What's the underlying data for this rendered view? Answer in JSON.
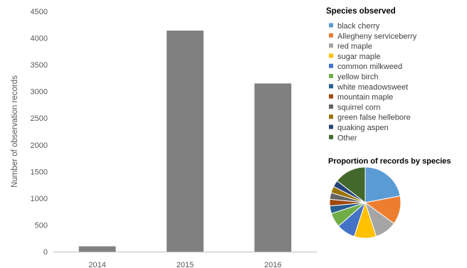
{
  "chart_data": [
    {
      "type": "bar",
      "categories": [
        "2014",
        "2015",
        "2016"
      ],
      "values": [
        100,
        4140,
        3150
      ],
      "ylabel": "Number of observation records",
      "xlabel": "",
      "ylim": [
        0,
        4500
      ],
      "yticks": [
        0,
        500,
        1000,
        1500,
        2000,
        2500,
        3000,
        3500,
        4000,
        4500
      ],
      "bar_color": "#808080",
      "grid": false
    },
    {
      "type": "pie",
      "title": "Proportion of records by species",
      "legend_title": "Species observed",
      "legend_placement": "right",
      "slices": [
        {
          "name": "black cherry",
          "value": 22,
          "color": "#5B9BD5"
        },
        {
          "name": "Allegheny serviceberry",
          "value": 13,
          "color": "#ED7D31"
        },
        {
          "name": "red maple",
          "value": 10,
          "color": "#A5A5A5"
        },
        {
          "name": "sugar maple",
          "value": 10,
          "color": "#FFC000"
        },
        {
          "name": "common milkweed",
          "value": 8.5,
          "color": "#4472C4"
        },
        {
          "name": "yellow birch",
          "value": 6.5,
          "color": "#70AD47"
        },
        {
          "name": "white meadowsweet",
          "value": 3.5,
          "color": "#255E91"
        },
        {
          "name": "mountain maple",
          "value": 3,
          "color": "#9E480E"
        },
        {
          "name": "squirrel corn",
          "value": 3,
          "color": "#636363"
        },
        {
          "name": "green false hellebore",
          "value": 3,
          "color": "#997300"
        },
        {
          "name": "quaking aspen",
          "value": 3,
          "color": "#264478"
        },
        {
          "name": "Other",
          "value": 14.5,
          "color": "#43682B"
        }
      ]
    }
  ]
}
